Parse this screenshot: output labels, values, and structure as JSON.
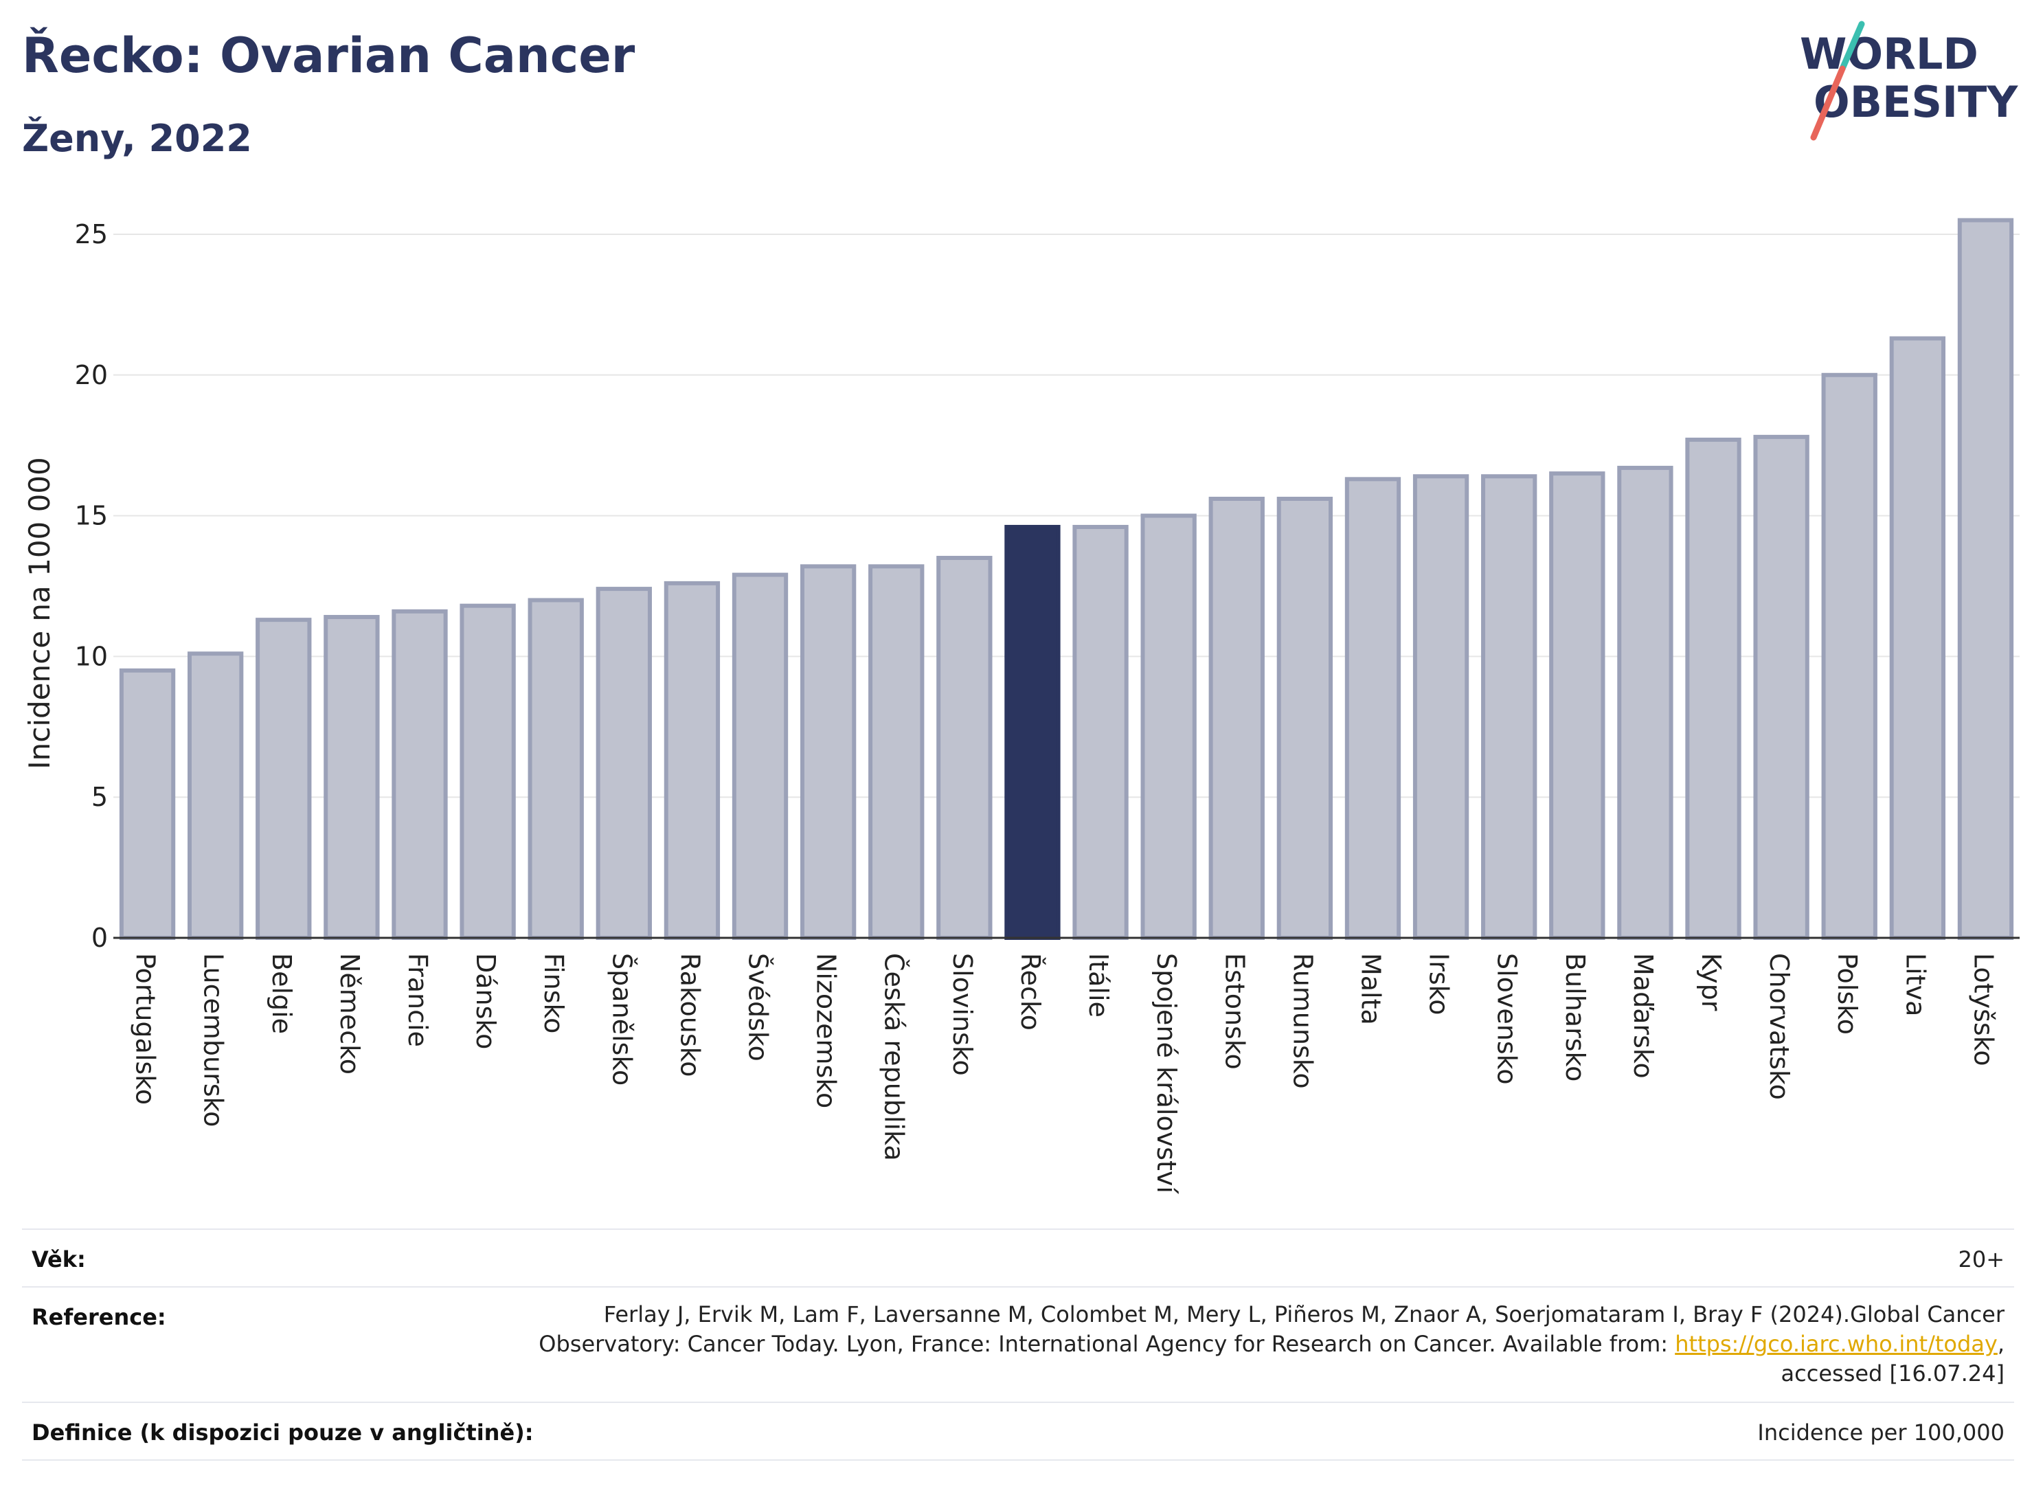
{
  "header": {
    "title": "Řecko: Ovarian Cancer",
    "subtitle": "Ženy, 2022"
  },
  "logo": {
    "line1": "WORLD",
    "line2": "OBESITY",
    "colors": {
      "text": "#2b355f",
      "slash_top": "#3bbfb0",
      "slash_bottom": "#e8655a"
    }
  },
  "chart_data": {
    "type": "bar",
    "ylabel": "Incidence na 100 000",
    "xlabel": "",
    "ylim": [
      0,
      26
    ],
    "yticks": [
      0,
      5,
      10,
      15,
      20,
      25
    ],
    "grid": true,
    "highlight": "Řecko",
    "colors": {
      "bar": "#bfc2cf",
      "bar_border": "#9ba1b8",
      "highlight": "#2b355f",
      "grid": "#e6e6e6",
      "axis": "#333333"
    },
    "categories": [
      "Portugalsko",
      "Lucembursko",
      "Belgie",
      "Německo",
      "Francie",
      "Dánsko",
      "Finsko",
      "Španělsko",
      "Rakousko",
      "Švédsko",
      "Nizozemsko",
      "Česká republika",
      "Slovinsko",
      "Řecko",
      "Itálie",
      "Spojené království",
      "Estonsko",
      "Rumunsko",
      "Malta",
      "Irsko",
      "Slovensko",
      "Bulharsko",
      "Maďarsko",
      "Kypr",
      "Chorvatsko",
      "Polsko",
      "Litva",
      "Lotyšsko"
    ],
    "values": [
      9.5,
      10.1,
      11.3,
      11.4,
      11.6,
      11.8,
      12.0,
      12.4,
      12.6,
      12.9,
      13.2,
      13.2,
      13.5,
      14.6,
      14.6,
      15.0,
      15.6,
      15.6,
      16.3,
      16.4,
      16.4,
      16.5,
      16.7,
      17.7,
      17.8,
      20.0,
      21.3,
      25.5
    ]
  },
  "info": {
    "age": {
      "label": "Věk:",
      "value": "20+"
    },
    "reference": {
      "label": "Reference:",
      "line1": "Ferlay J, Ervik M, Lam F, Laversanne M, Colombet M, Mery L, Piñeros M, Znaor A, Soerjomataram I, Bray F (2024).Global Cancer",
      "line2_prefix": "Observatory: Cancer Today. Lyon, France: International Agency for Research on Cancer. Available from: ",
      "link": "https://gco.iarc.who.int/today",
      "line2_suffix": ",",
      "line3": "accessed [16.07.24]"
    },
    "definition": {
      "label": "Definice (k dispozici pouze v angličtině):",
      "value": "Incidence per 100,000"
    }
  }
}
